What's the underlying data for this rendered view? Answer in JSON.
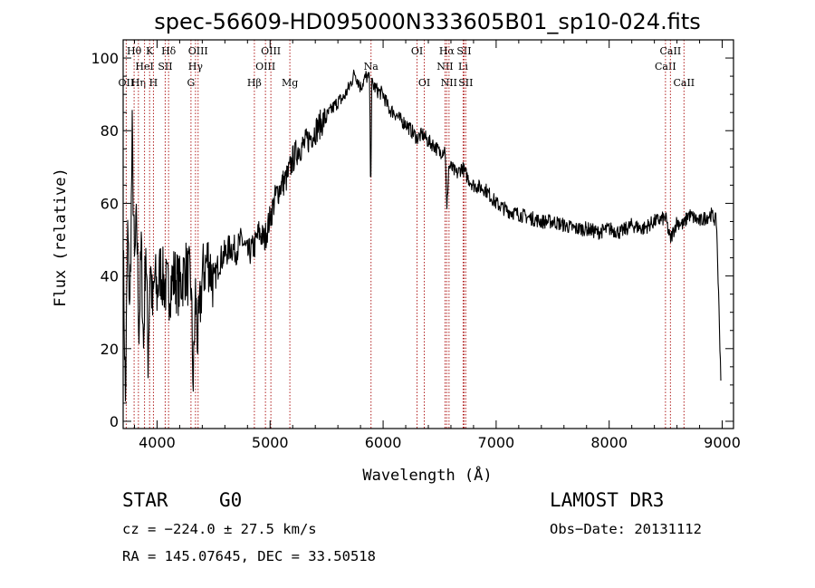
{
  "chart_data": {
    "type": "line",
    "title": "spec-56609-HD095000N333605B01_sp10-024.fits",
    "xlabel": "Wavelength (Å)",
    "ylabel": "Flux (relative)",
    "xlim": [
      3700,
      9100
    ],
    "ylim": [
      -2,
      105
    ],
    "xticks": [
      4000,
      5000,
      6000,
      7000,
      8000,
      9000
    ],
    "xtick_labels": [
      "4000",
      "5000",
      "6000",
      "7000",
      "8000",
      "9000"
    ],
    "yticks": [
      0,
      20,
      40,
      60,
      80,
      100
    ],
    "ytick_labels": [
      "0",
      "20",
      "40",
      "60",
      "80",
      "100"
    ],
    "series": [
      {
        "name": "flux",
        "x": [
          3700,
          3720,
          3740,
          3760,
          3780,
          3800,
          3820,
          3840,
          3860,
          3880,
          3900,
          3920,
          3940,
          3960,
          3980,
          4000,
          4030,
          4060,
          4100,
          4150,
          4200,
          4250,
          4300,
          4320,
          4340,
          4360,
          4400,
          4450,
          4500,
          4550,
          4600,
          4650,
          4700,
          4750,
          4800,
          4860,
          4900,
          4950,
          5000,
          5050,
          5100,
          5150,
          5200,
          5250,
          5300,
          5350,
          5400,
          5450,
          5500,
          5550,
          5600,
          5650,
          5700,
          5750,
          5800,
          5850,
          5880,
          5890,
          5900,
          5950,
          6000,
          6050,
          6100,
          6150,
          6200,
          6250,
          6300,
          6350,
          6400,
          6450,
          6500,
          6550,
          6563,
          6580,
          6600,
          6650,
          6700,
          6750,
          6800,
          6900,
          7000,
          7100,
          7200,
          7300,
          7400,
          7500,
          7600,
          7700,
          7800,
          7900,
          8000,
          8100,
          8200,
          8300,
          8400,
          8500,
          8540,
          8600,
          8660,
          8700,
          8800,
          8900,
          8950,
          8990
        ],
        "y": [
          48,
          5,
          52,
          30,
          78,
          42,
          55,
          25,
          48,
          20,
          50,
          18,
          45,
          30,
          40,
          35,
          42,
          38,
          36,
          40,
          37,
          42,
          38,
          10,
          35,
          22,
          40,
          45,
          38,
          44,
          46,
          48,
          47,
          50,
          46,
          48,
          52,
          50,
          56,
          62,
          65,
          67,
          72,
          75,
          76,
          78,
          80,
          82,
          84,
          86,
          88,
          89,
          92,
          96,
          92,
          95,
          94,
          63,
          93,
          91,
          90,
          86,
          85,
          83,
          82,
          80,
          78,
          79,
          77,
          76,
          74,
          75,
          57,
          70,
          70,
          68,
          70,
          67,
          65,
          64,
          60,
          58,
          57,
          56,
          55,
          55,
          54,
          53,
          53,
          52,
          53,
          52,
          54,
          53,
          55,
          56,
          50,
          55,
          54,
          57,
          55,
          57,
          55,
          10
        ]
      }
    ],
    "spectral_lines": [
      {
        "name": "OII",
        "wavelength": 3727,
        "row": 2
      },
      {
        "name": "Hθ",
        "wavelength": 3797,
        "row": 0
      },
      {
        "name": "Hη",
        "wavelength": 3835,
        "row": 2
      },
      {
        "name": "HeI",
        "wavelength": 3889,
        "row": 1
      },
      {
        "name": "K",
        "wavelength": 3934,
        "row": 0
      },
      {
        "name": "H",
        "wavelength": 3968,
        "row": 2
      },
      {
        "name": "SII",
        "wavelength": 4072,
        "row": 1
      },
      {
        "name": "Hδ",
        "wavelength": 4102,
        "row": 0
      },
      {
        "name": "G",
        "wavelength": 4300,
        "row": 2
      },
      {
        "name": "Hγ",
        "wavelength": 4340,
        "row": 1
      },
      {
        "name": "OIII",
        "wavelength": 4363,
        "row": 0
      },
      {
        "name": "Hβ",
        "wavelength": 4861,
        "row": 2
      },
      {
        "name": "OIII",
        "wavelength": 4959,
        "row": 1
      },
      {
        "name": "OIII",
        "wavelength": 5007,
        "row": 0
      },
      {
        "name": "Mg",
        "wavelength": 5175,
        "row": 2
      },
      {
        "name": "Na",
        "wavelength": 5893,
        "row": 1
      },
      {
        "name": "OI",
        "wavelength": 6300,
        "row": 0
      },
      {
        "name": "OI",
        "wavelength": 6364,
        "row": 2
      },
      {
        "name": "NII",
        "wavelength": 6548,
        "row": 1
      },
      {
        "name": "Hα",
        "wavelength": 6563,
        "row": 0
      },
      {
        "name": "NII",
        "wavelength": 6583,
        "row": 2
      },
      {
        "name": "Li",
        "wavelength": 6708,
        "row": 1
      },
      {
        "name": "SII",
        "wavelength": 6716,
        "row": 0
      },
      {
        "name": "SII",
        "wavelength": 6731,
        "row": 2
      },
      {
        "name": "CaII",
        "wavelength": 8498,
        "row": 1
      },
      {
        "name": "CaII",
        "wavelength": 8542,
        "row": 0
      },
      {
        "name": "CaII",
        "wavelength": 8662,
        "row": 2
      }
    ],
    "colors": {
      "line_marker": "#b22222",
      "spectrum": "#000000"
    }
  },
  "info": {
    "object_type": "STAR",
    "subclass": "G0",
    "survey": "LAMOST DR3",
    "cz": "cz = −224.0 ± 27.5 km/s",
    "obs_date": "Obs−Date: 20131112",
    "coords": "RA = 145.07645, DEC =  33.50518"
  }
}
